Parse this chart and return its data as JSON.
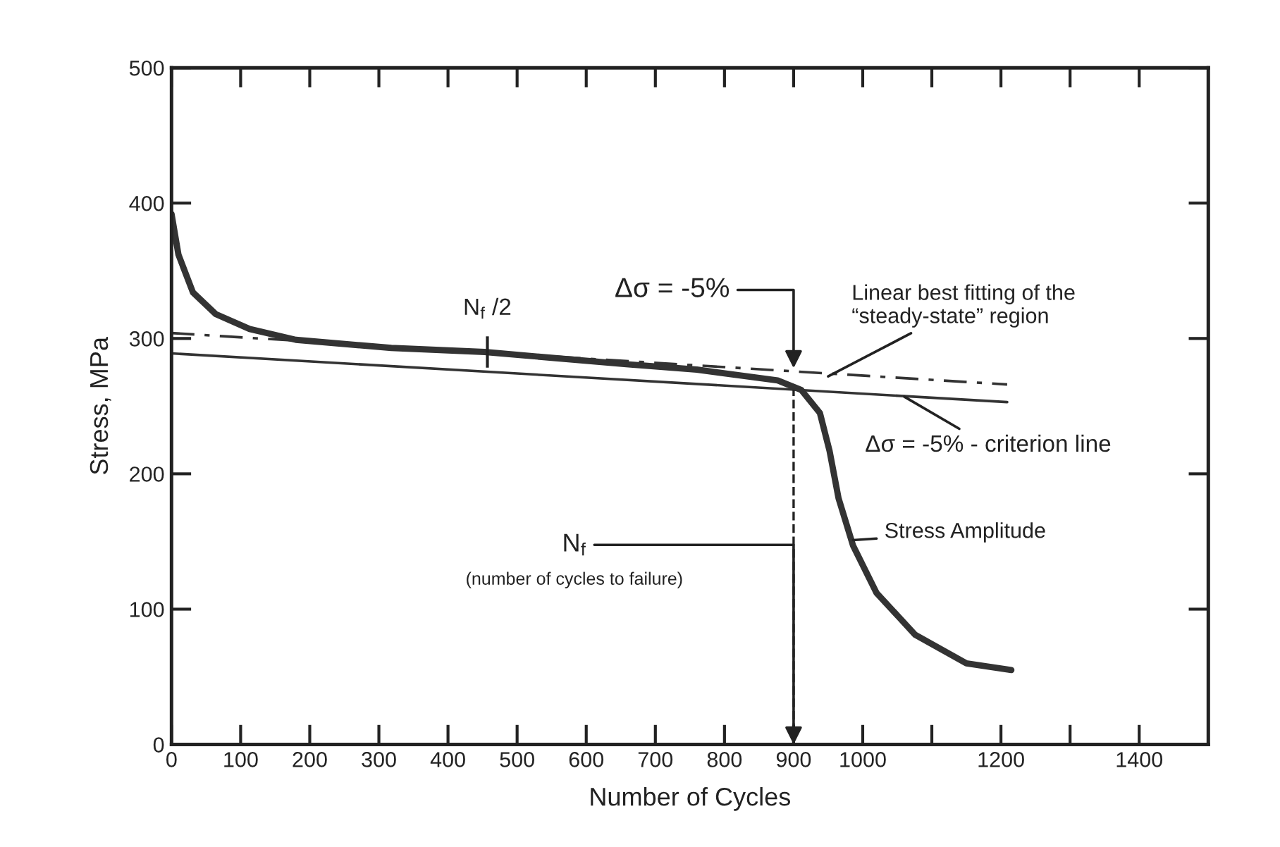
{
  "chart_data": {
    "type": "line",
    "xlabel": "Number of Cycles",
    "ylabel": "Stress, MPa",
    "xlim": [
      0,
      1500
    ],
    "ylim": [
      0,
      500
    ],
    "xticks": [
      0,
      100,
      200,
      300,
      400,
      500,
      600,
      700,
      800,
      900,
      1000,
      {
        "value": 1100,
        "label": null
      },
      1200,
      {
        "value": 1300,
        "label": null
      },
      1400
    ],
    "yticks": [
      0,
      100,
      200,
      300,
      400,
      500
    ],
    "grid": false,
    "legend": false,
    "marker": "none",
    "series": [
      {
        "color": "#333333",
        "line_style": "solid",
        "x": [
          0,
          10,
          31,
          64,
          113,
          180,
          318,
          453,
          658,
          760,
          877,
          911,
          938,
          952,
          965,
          986,
          1020,
          1076,
          1150,
          1215
        ],
        "values": [
          392,
          362,
          334,
          318,
          307,
          299,
          293,
          290,
          281,
          277,
          269,
          262,
          245,
          217,
          182,
          147,
          112,
          81,
          60,
          55
        ]
      },
      {
        "color": "#333333",
        "line_style": "solid",
        "x": [
          0,
          1209
        ],
        "values": [
          289,
          253
        ]
      },
      {
        "color": "#333333",
        "line_style": "dashdot",
        "x": [
          0,
          1209
        ],
        "values": [
          304,
          266
        ]
      }
    ],
    "annotations": [
      {
        "text": "Δσ = -5%",
        "x": 900,
        "y": 278
      },
      {
        "text": "N$_{f}$ /2",
        "x": 457,
        "y": 290
      },
      {
        "text": "Linear best fitting of the\n“steady-state” region",
        "x": 950,
        "y": 272
      },
      {
        "text": "Δσ = -5% - criterion line",
        "x": 1060,
        "y": 257
      },
      {
        "text": "Stress Amplitude",
        "x": 986,
        "y": 151
      },
      {
        "text": "N$_{f}$",
        "x": 900,
        "y": 0
      },
      "(number of cycles to failure)"
    ],
    "ref_lines": [
      {
        "axis": "x",
        "value": 900,
        "line_style": "dashed"
      }
    ]
  }
}
